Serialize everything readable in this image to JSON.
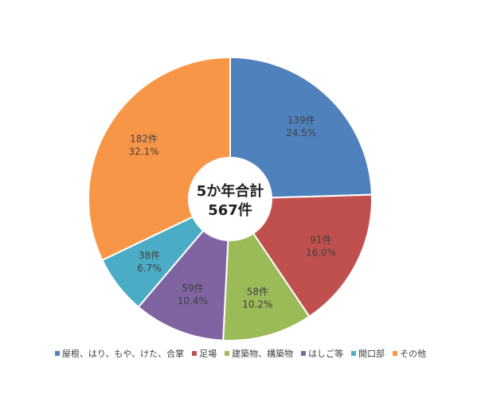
{
  "chart_data": {
    "type": "pie",
    "title": "",
    "center_label": [
      "5か年合計",
      "567件"
    ],
    "legend_position": "bottom",
    "slices": [
      {
        "name": "屋根、はり、もや、けた、合掌",
        "value": 139,
        "count_label": "139件",
        "percent_label": "24.5%",
        "color": "#4F81BD"
      },
      {
        "name": "足場",
        "value": 91,
        "count_label": "91件",
        "percent_label": "16.0%",
        "color": "#C0504D"
      },
      {
        "name": "建築物、構築物",
        "value": 58,
        "count_label": "58件",
        "percent_label": "10.2%",
        "color": "#9BBB59"
      },
      {
        "name": "はしご等",
        "value": 59,
        "count_label": "59件",
        "percent_label": "10.4%",
        "color": "#8064A2"
      },
      {
        "name": "開口部",
        "value": 38,
        "count_label": "38件",
        "percent_label": "6.7%",
        "color": "#4BACC6"
      },
      {
        "name": "その他",
        "value": 182,
        "count_label": "182件",
        "percent_label": "32.1%",
        "color": "#F79646"
      }
    ]
  }
}
